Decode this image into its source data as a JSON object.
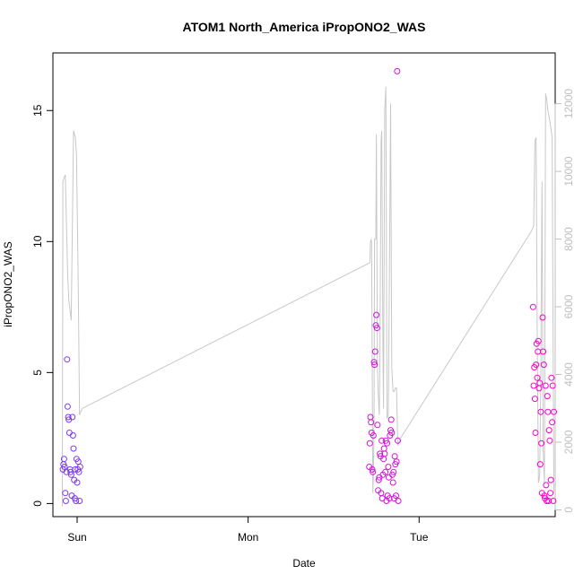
{
  "chart_data": {
    "type": "scatter",
    "title": "ATOM1 North_America iPropONO2_WAS",
    "xlabel": "Date",
    "ylabel": "iPropONO2_WAS",
    "x_ticks": [
      "Sun",
      "Mon",
      "Tue"
    ],
    "ylim": [
      -0.5,
      17.2
    ],
    "y_ticks": [
      0,
      5,
      10,
      15
    ],
    "y2lim": [
      -200,
      13500
    ],
    "y2_ticks": [
      0,
      2000,
      4000,
      6000,
      8000,
      10000,
      12000
    ],
    "grid": false,
    "colors": {
      "scatter_start": "#7a3cf0",
      "scatter_end": "#ff00cc",
      "line": "#c8c8c8",
      "right_axis": "#bfbfbf"
    },
    "series": [
      {
        "type": "scatter",
        "x": [
          "Sat 22:00",
          "Sat 22:05",
          "Sat 22:10",
          "Sat 22:15",
          "Sat 22:20",
          "Sat 22:25",
          "Sat 22:30",
          "Sat 22:35",
          "Sat 22:40",
          "Sat 22:45",
          "Sat 22:50",
          "Sat 22:55",
          "Sat 23:00",
          "Sat 23:05",
          "Sat 23:10",
          "Sat 23:15",
          "Sat 23:20",
          "Sat 23:25",
          "Sat 23:30",
          "Sat 23:35",
          "Sat 23:40",
          "Sat 23:45",
          "Sat 23:50",
          "Sat 23:55",
          "Sun 00:00",
          "Sun 00:05",
          "Sun 00:10",
          "Sun 00:15",
          "Sun 00:20",
          "Sun 00:25",
          "Mon 17:00",
          "Mon 17:05",
          "Mon 17:10",
          "Mon 17:15",
          "Mon 17:20",
          "Mon 17:25",
          "Mon 17:30",
          "Mon 17:35",
          "Mon 17:40",
          "Mon 17:45",
          "Mon 17:50",
          "Mon 17:55",
          "Mon 18:00",
          "Mon 18:05",
          "Mon 18:10",
          "Mon 18:15",
          "Mon 18:20",
          "Mon 18:25",
          "Mon 18:30",
          "Mon 18:35",
          "Mon 18:40",
          "Mon 18:45",
          "Mon 18:50",
          "Mon 18:55",
          "Mon 19:00",
          "Mon 19:05",
          "Mon 19:10",
          "Mon 19:15",
          "Mon 19:20",
          "Mon 19:25",
          "Mon 19:30",
          "Mon 19:35",
          "Mon 19:40",
          "Mon 19:45",
          "Mon 19:50",
          "Mon 19:55",
          "Mon 20:00",
          "Mon 20:05",
          "Mon 20:10",
          "Mon 20:15",
          "Mon 20:20",
          "Mon 20:25",
          "Mon 20:30",
          "Mon 20:35",
          "Mon 20:40",
          "Mon 20:45",
          "Mon 20:50",
          "Mon 20:55",
          "Mon 21:00",
          "Mon 21:05",
          "Tue 16:00",
          "Tue 16:05",
          "Tue 16:10",
          "Tue 16:15",
          "Tue 16:20",
          "Tue 16:25",
          "Tue 16:30",
          "Tue 16:35",
          "Tue 16:40",
          "Tue 16:45",
          "Tue 16:50",
          "Tue 16:55",
          "Tue 17:00",
          "Tue 17:05",
          "Tue 17:10",
          "Tue 17:15",
          "Tue 17:20",
          "Tue 17:25",
          "Tue 17:30",
          "Tue 17:35",
          "Tue 17:40",
          "Tue 17:45",
          "Tue 17:50",
          "Tue 17:55",
          "Tue 18:00",
          "Tue 18:05",
          "Tue 18:10",
          "Tue 18:15",
          "Tue 18:20",
          "Tue 18:25",
          "Tue 18:30",
          "Tue 18:35",
          "Tue 18:40",
          "Tue 18:45",
          "Tue 18:50",
          "Tue 18:55"
        ],
        "y": [
          1.3,
          1.5,
          1.7,
          1.4,
          0.4,
          0.1,
          1.2,
          5.5,
          3.7,
          3.3,
          3.2,
          2.7,
          1.3,
          1.2,
          1.1,
          0.3,
          3.3,
          2.6,
          2.1,
          0.9,
          0.2,
          1.3,
          0.1,
          1.7,
          0.8,
          1.3,
          1.6,
          1.2,
          0.1,
          1.4,
          1.4,
          2.3,
          3.3,
          3.1,
          2.7,
          1.3,
          1.2,
          2.6,
          5.4,
          5.3,
          5.8,
          6.8,
          7.2,
          6.7,
          3.0,
          0.5,
          0.9,
          1.0,
          1.9,
          1.8,
          0.4,
          2.4,
          0.2,
          1.1,
          1.7,
          2.1,
          1.9,
          1.2,
          2.4,
          0.1,
          2.3,
          0.3,
          1.4,
          1.0,
          0.2,
          2.6,
          2.8,
          3.2,
          2.7,
          1.1,
          0.8,
          1.2,
          0.2,
          1.8,
          1.5,
          0.3,
          1.6,
          16.5,
          2.4,
          0.1,
          7.5,
          4.5,
          5.2,
          4.0,
          2.7,
          5.3,
          6.1,
          4.8,
          5.8,
          6.2,
          4.4,
          4.6,
          1.5,
          3.5,
          2.3,
          0.4,
          7.1,
          5.8,
          5.3,
          0.3,
          0.2,
          4.5,
          0.7,
          0.1,
          4.1,
          3.5,
          0.1,
          2.8,
          2.4,
          0.4,
          0.9,
          4.8,
          3.1,
          4.5,
          0.1,
          3.5
        ]
      },
      {
        "type": "line",
        "axis": "right",
        "x": [
          "Sat 21:55",
          "Sat 22:00",
          "Sat 22:10",
          "Sat 22:20",
          "Sat 22:40",
          "Sat 22:50",
          "Sat 23:10",
          "Sat 23:30",
          "Sat 23:45",
          "Sat 23:55",
          "Sun 00:10",
          "Sun 00:20",
          "Sun 00:30",
          "Sun 00:45",
          "Mon 17:05",
          "Mon 17:10",
          "Mon 17:15",
          "Mon 17:20",
          "Mon 17:30",
          "Mon 17:35",
          "Mon 17:40",
          "Mon 17:45",
          "Mon 17:55",
          "Mon 18:00",
          "Mon 18:10",
          "Mon 18:15",
          "Mon 18:25",
          "Mon 18:30",
          "Mon 18:40",
          "Mon 18:45",
          "Mon 18:55",
          "Mon 19:00",
          "Mon 19:10",
          "Mon 19:20",
          "Mon 19:30",
          "Mon 19:40",
          "Mon 19:50",
          "Mon 20:00",
          "Mon 20:10",
          "Mon 20:20",
          "Mon 20:30",
          "Mon 20:40",
          "Mon 20:50",
          "Mon 21:00",
          "Mon 21:10",
          "Mon 21:20",
          "Tue 15:40",
          "Tue 15:55",
          "Tue 16:05",
          "Tue 16:15",
          "Tue 16:25",
          "Tue 16:35",
          "Tue 16:45",
          "Tue 16:55",
          "Tue 17:05",
          "Tue 17:15",
          "Tue 17:25",
          "Tue 17:35",
          "Tue 17:45",
          "Tue 17:55",
          "Tue 18:05",
          "Tue 18:20",
          "Tue 18:40",
          "Tue 18:55"
        ],
        "y": [
          100,
          9700,
          9800,
          9900,
          7000,
          6200,
          5600,
          11200,
          11000,
          10500,
          6500,
          2800,
          2900,
          3000,
          7300,
          7900,
          8000,
          7900,
          500,
          1000,
          2500,
          8000,
          8000,
          11100,
          4200,
          3500,
          2800,
          4500,
          10900,
          11200,
          5000,
          3000,
          11800,
          12500,
          2700,
          2800,
          7000,
          12000,
          4200,
          3500,
          3500,
          3600,
          3600,
          1900,
          2000,
          2100,
          8200,
          8300,
          8400,
          10900,
          11000,
          5000,
          800,
          1000,
          4000,
          9700,
          1800,
          800,
          12300,
          12100,
          11800,
          11500,
          11000,
          500
        ]
      }
    ]
  }
}
